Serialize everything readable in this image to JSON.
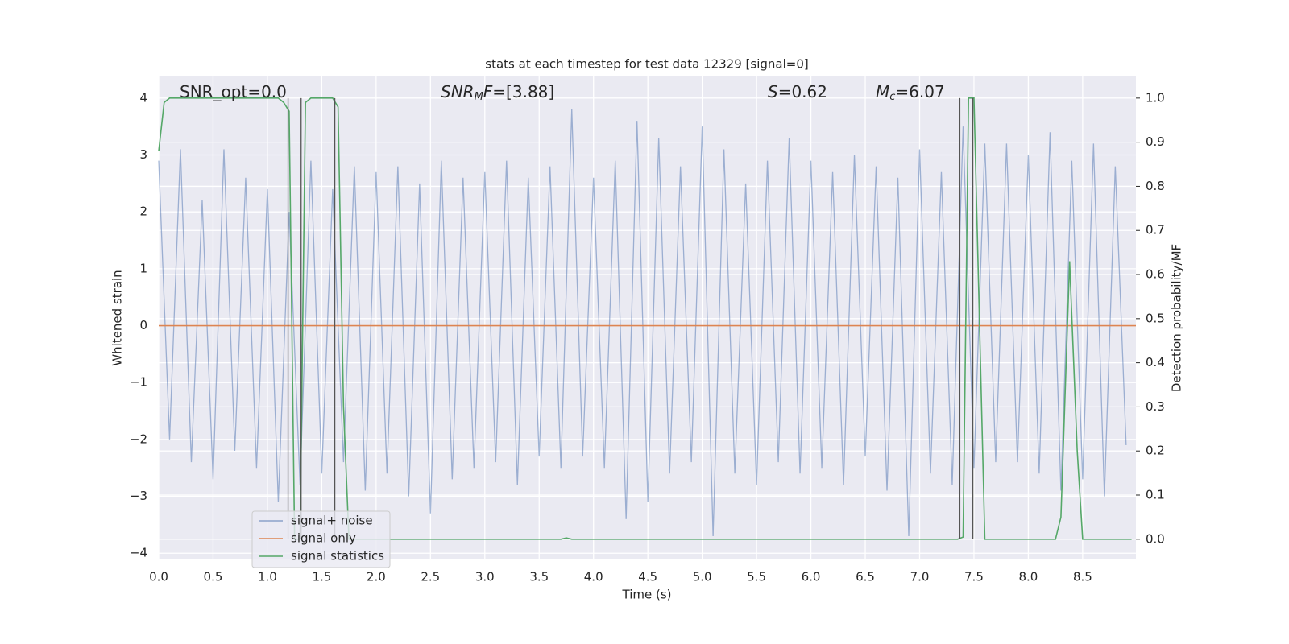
{
  "chart_data": {
    "type": "line",
    "title": "stats at each timestep for test data 12329 [signal=0]",
    "xlabel": "Time (s)",
    "ylabel": "Whitened strain",
    "y2label": "Detection probability/MF",
    "annotations": [
      [
        "SNR_opt=0.0"
      ],
      [
        "SNR",
        "M",
        "F",
        "=[3.88]"
      ],
      [
        "S",
        "=0.62"
      ],
      [
        "M",
        "c",
        "=6.07"
      ]
    ],
    "xlim": [
      0,
      8.99
    ],
    "ylim": [
      -4.11,
      4.38
    ],
    "y2lim": [
      -0.046,
      1.049
    ],
    "grid": true,
    "legend": "lower left",
    "xticks": [
      {
        "value": 0,
        "label": "0.0"
      },
      {
        "value": 0.5,
        "label": "0.5"
      },
      {
        "value": 1,
        "label": "1.0"
      },
      {
        "value": 1.5,
        "label": "1.5"
      },
      {
        "value": 2,
        "label": "2.0"
      },
      {
        "value": 2.5,
        "label": "2.5"
      },
      {
        "value": 3,
        "label": "3.0"
      },
      {
        "value": 3.5,
        "label": "3.5"
      },
      {
        "value": 4,
        "label": "4.0"
      },
      {
        "value": 4.5,
        "label": "4.5"
      },
      {
        "value": 5,
        "label": "5.0"
      },
      {
        "value": 5.5,
        "label": "5.5"
      },
      {
        "value": 6,
        "label": "6.0"
      },
      {
        "value": 6.5,
        "label": "6.5"
      },
      {
        "value": 7,
        "label": "7.0"
      },
      {
        "value": 7.5,
        "label": "7.5"
      },
      {
        "value": 8,
        "label": "8.0"
      },
      {
        "value": 8.5,
        "label": "8.5"
      }
    ],
    "yticks": [
      {
        "value": -4,
        "label": "−4"
      },
      {
        "value": -3,
        "label": "−3"
      },
      {
        "value": -2,
        "label": "−2"
      },
      {
        "value": -1,
        "label": "−1"
      },
      0,
      1,
      2,
      3,
      4
    ],
    "y2ticks": [
      {
        "value": 0,
        "label": "0.0"
      },
      {
        "value": 0.1,
        "label": "0.1"
      },
      {
        "value": 0.2,
        "label": "0.2"
      },
      {
        "value": 0.3,
        "label": "0.3"
      },
      {
        "value": 0.4,
        "label": "0.4"
      },
      {
        "value": 0.5,
        "label": "0.5"
      },
      {
        "value": 0.6,
        "label": "0.6"
      },
      {
        "value": 0.7,
        "label": "0.7"
      },
      {
        "value": 0.8,
        "label": "0.8"
      },
      {
        "value": 0.9,
        "label": "0.9"
      },
      {
        "value": 1,
        "label": "1.0"
      }
    ],
    "vlines": {
      "color": "#555555",
      "x": [
        1.19,
        1.31,
        1.62,
        7.37,
        7.49
      ]
    },
    "series": [
      {
        "name": "signal+ noise",
        "color": "#4c72b0",
        "x": [
          0,
          0.1,
          0.2,
          0.3,
          0.4,
          0.5,
          0.6,
          0.7,
          0.8,
          0.9,
          1,
          1.1,
          1.2,
          1.3,
          1.4,
          1.5,
          1.6,
          1.7,
          1.8,
          1.9,
          2,
          2.1,
          2.2,
          2.3,
          2.4,
          2.5,
          2.6,
          2.7,
          2.8,
          2.9,
          3,
          3.1,
          3.2,
          3.3,
          3.4,
          3.5,
          3.6,
          3.7,
          3.8,
          3.9,
          4,
          4.1,
          4.2,
          4.3,
          4.4,
          4.5,
          4.6,
          4.7,
          4.8,
          4.9,
          5,
          5.1,
          5.2,
          5.3,
          5.4,
          5.5,
          5.6,
          5.7,
          5.8,
          5.9,
          6,
          6.1,
          6.2,
          6.3,
          6.4,
          6.5,
          6.6,
          6.7,
          6.8,
          6.9,
          7,
          7.1,
          7.2,
          7.3,
          7.4,
          7.5,
          7.6,
          7.7,
          7.8,
          7.9,
          8,
          8.1,
          8.2,
          8.3,
          8.4,
          8.5,
          8.6,
          8.7,
          8.8,
          8.9
        ],
        "values": [
          2.9,
          -2.0,
          3.1,
          -2.4,
          2.2,
          -2.7,
          3.1,
          -2.2,
          2.6,
          -2.5,
          2.4,
          -3.1,
          2.0,
          -2.8,
          2.9,
          -2.6,
          2.4,
          -2.4,
          2.8,
          -2.9,
          2.7,
          -2.6,
          2.8,
          -3.0,
          2.5,
          -3.3,
          2.9,
          -2.7,
          2.6,
          -2.5,
          2.7,
          -2.4,
          2.9,
          -2.8,
          2.6,
          -2.3,
          2.8,
          -2.5,
          3.8,
          -2.3,
          2.6,
          -2.5,
          2.9,
          -3.4,
          3.6,
          -3.1,
          3.3,
          -2.6,
          2.8,
          -2.4,
          3.5,
          -3.7,
          3.1,
          -2.6,
          2.5,
          -2.8,
          2.9,
          -2.4,
          3.3,
          -2.6,
          2.9,
          -2.5,
          2.7,
          -2.8,
          3.0,
          -2.3,
          2.8,
          -2.9,
          2.6,
          -3.7,
          3.1,
          -2.6,
          2.7,
          -2.8,
          3.5,
          -2.5,
          3.2,
          -2.4,
          3.2,
          -2.4,
          3.0,
          -2.6,
          3.4,
          -2.9,
          2.9,
          -2.7,
          3.2,
          -3.0,
          2.8,
          -2.1
        ]
      },
      {
        "name": "signal only",
        "color": "#dd8452",
        "x": [
          0,
          8.99
        ],
        "values": [
          0,
          0
        ]
      },
      {
        "name": "signal statistics",
        "color": "#55a868",
        "axis": "y2",
        "x": [
          0,
          0.05,
          0.1,
          1.1,
          1.15,
          1.2,
          1.25,
          1.3,
          1.35,
          1.4,
          1.6,
          1.65,
          1.7,
          1.75,
          3.7,
          3.75,
          3.8,
          7.35,
          7.4,
          7.45,
          7.5,
          7.55,
          7.6,
          8.25,
          8.3,
          8.38,
          8.45,
          8.5,
          8.95
        ],
        "values": [
          0.88,
          0.99,
          1.0,
          1.0,
          0.99,
          0.97,
          0.0,
          0.0,
          0.99,
          1.0,
          1.0,
          0.98,
          0.3,
          0.0,
          0.0,
          0.003,
          0.0,
          0.0,
          0.005,
          1.0,
          1.0,
          0.5,
          0.0,
          0.0,
          0.05,
          0.63,
          0.2,
          0.0,
          0.0
        ]
      }
    ]
  }
}
